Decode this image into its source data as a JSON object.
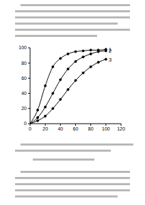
{
  "chart_data": {
    "type": "line",
    "x": [
      0,
      10,
      20,
      30,
      40,
      50,
      60,
      70,
      80,
      90,
      100
    ],
    "series": [
      {
        "name": "1",
        "color": "#000000",
        "values": [
          0,
          18,
          50,
          75,
          86,
          92,
          95,
          96,
          97,
          97,
          98
        ]
      },
      {
        "name": "2",
        "color": "#000000",
        "values": [
          0,
          8,
          22,
          40,
          58,
          72,
          82,
          88,
          92,
          95,
          96
        ]
      },
      {
        "name": "3",
        "color": "#000000",
        "values": [
          0,
          4,
          10,
          20,
          32,
          45,
          57,
          67,
          75,
          81,
          85
        ]
      }
    ],
    "xlim": [
      0,
      120
    ],
    "xticks": [
      0,
      20,
      40,
      60,
      80,
      100,
      120
    ],
    "ylim": [
      0,
      100
    ],
    "yticks": [
      0,
      20,
      40,
      60,
      80,
      100
    ],
    "marker": "circle",
    "grid": false
  }
}
